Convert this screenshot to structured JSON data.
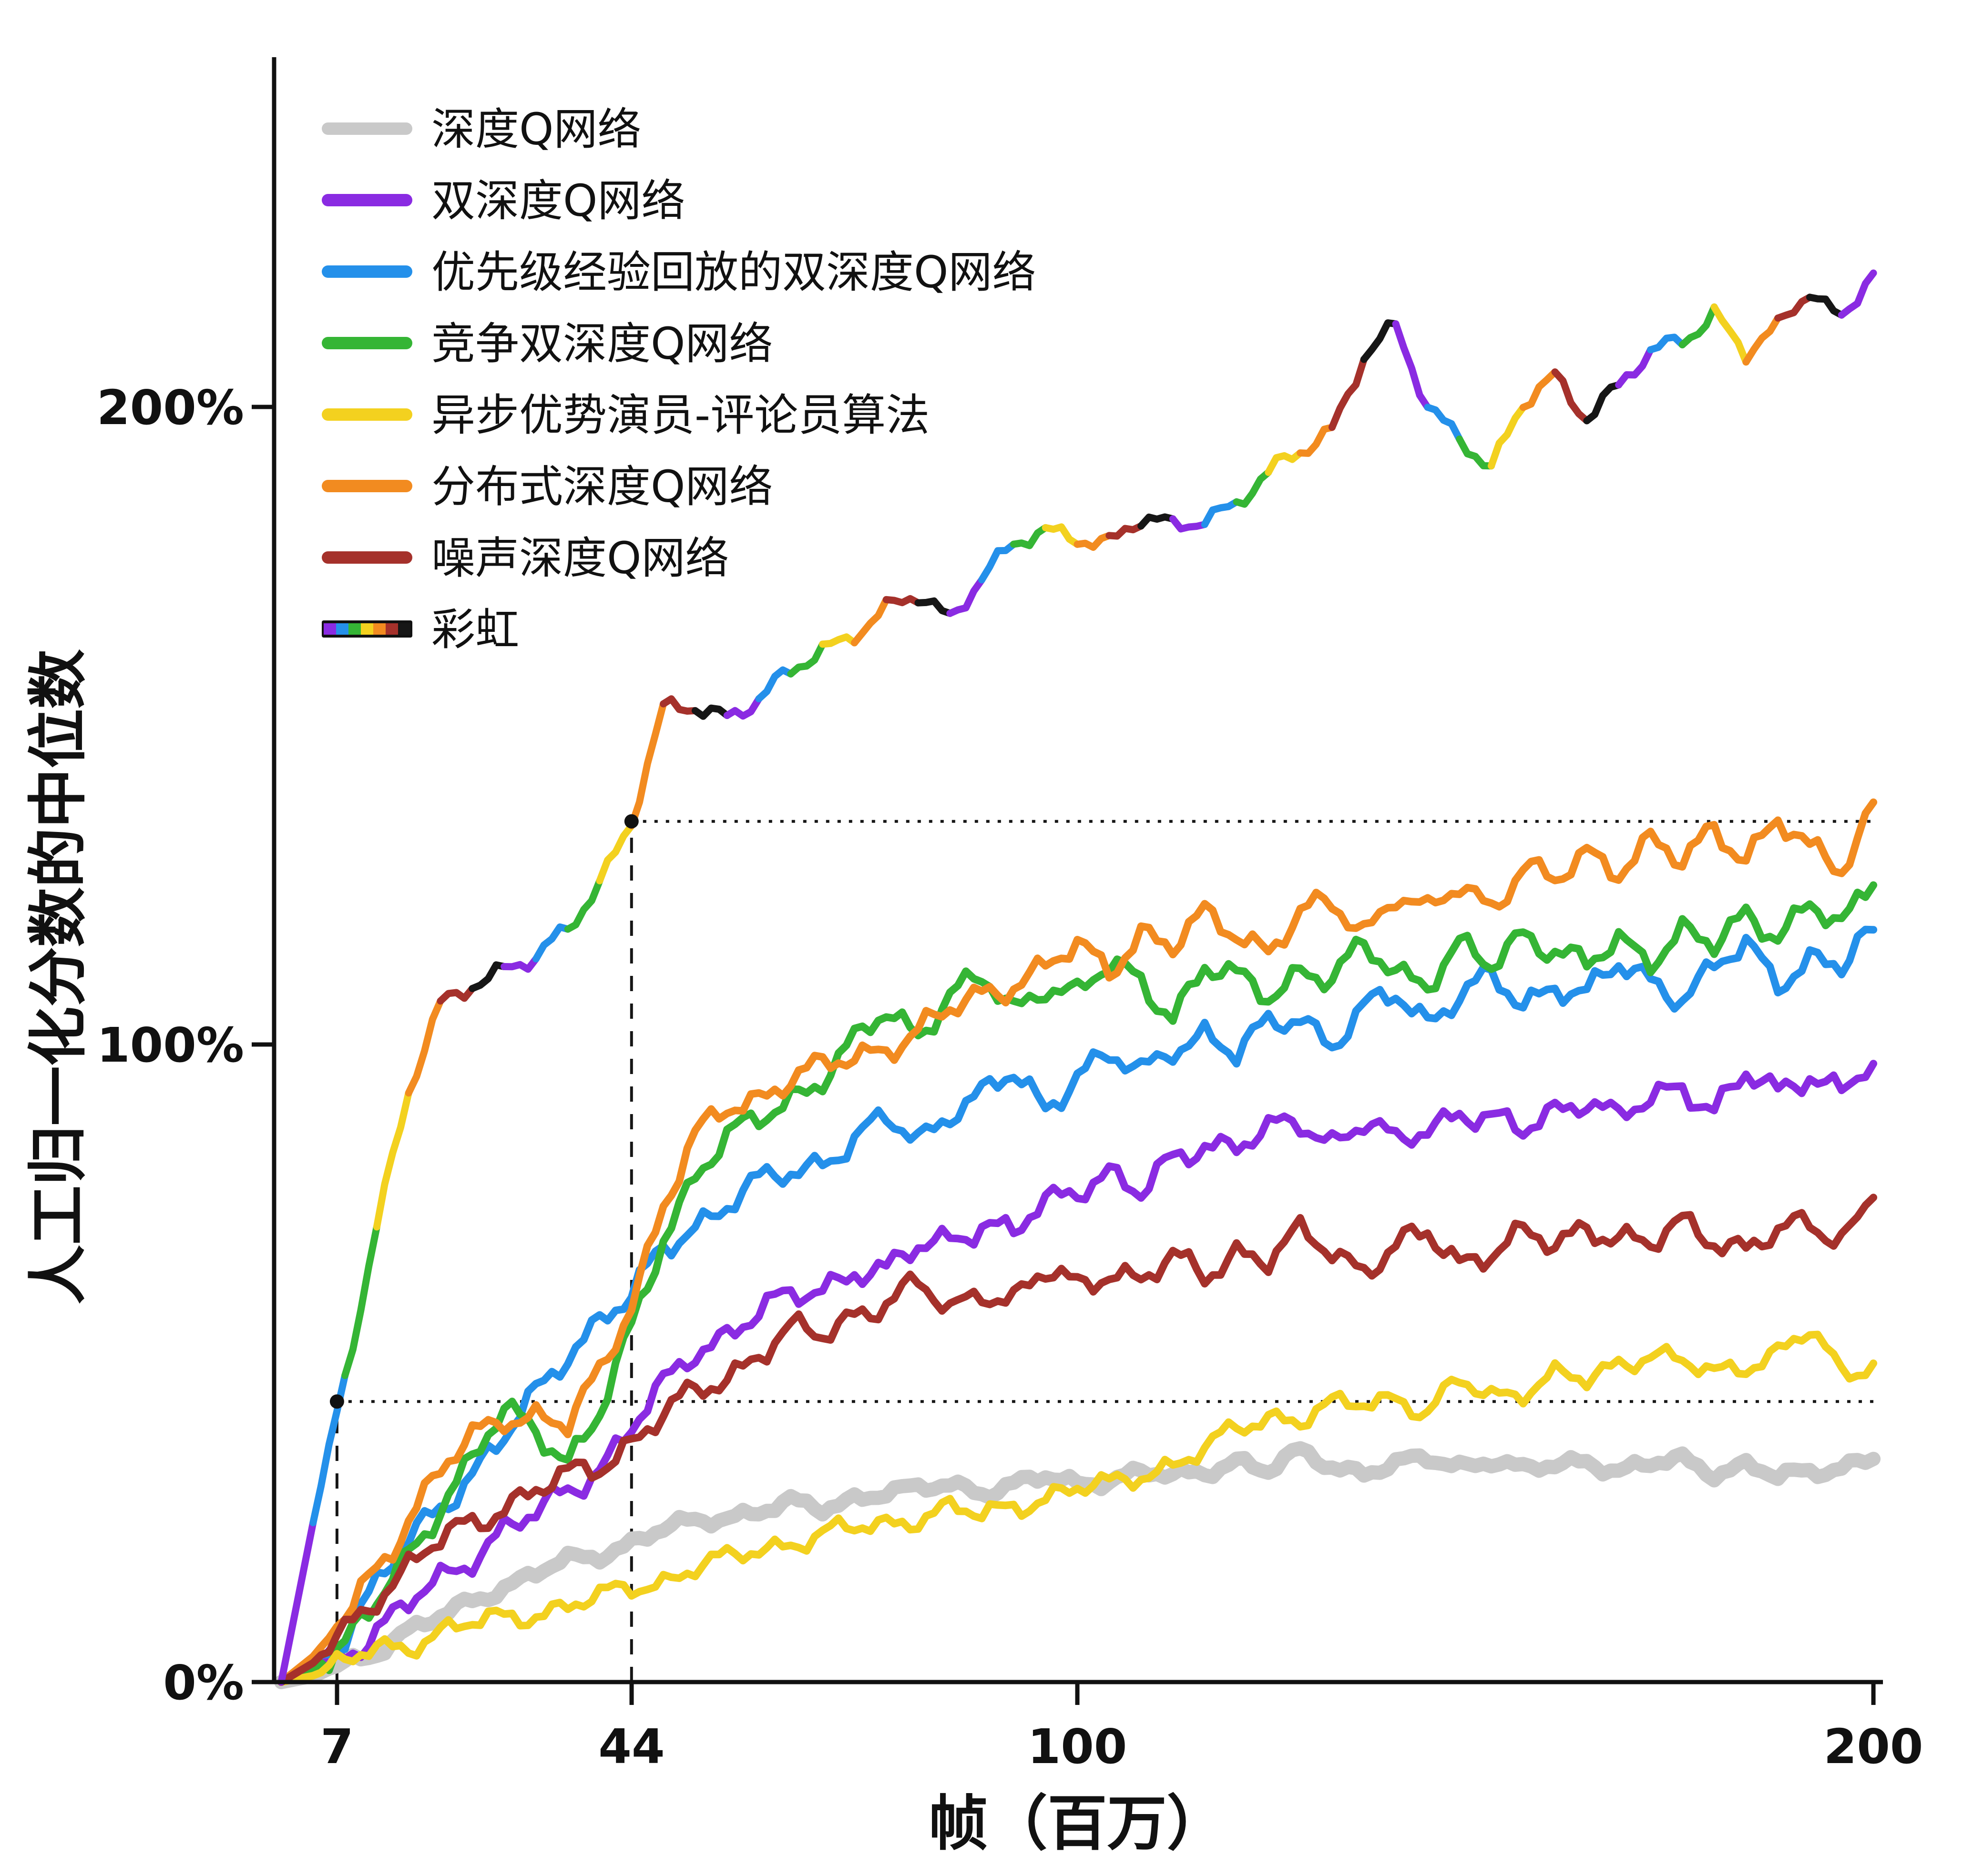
{
  "figure": {
    "background": "#ffffff"
  },
  "chart_data": {
    "type": "line",
    "title": "",
    "xlabel": "帧（百万）",
    "ylabel": "人工归一化分数的中位数",
    "xlim": [
      0,
      200
    ],
    "ylim": [
      0,
      230
    ],
    "grid": false,
    "legend_position": "top-left",
    "x_ticks": [
      7,
      44,
      100,
      200
    ],
    "x_tick_labels": [
      "7",
      "44",
      "100",
      "200"
    ],
    "y_ticks": [
      0,
      100,
      200
    ],
    "y_tick_labels": [
      "0%",
      "100%",
      "200%"
    ],
    "rainbow_palette": [
      "#8a2be2",
      "#2490ea",
      "#35b535",
      "#f3d11f",
      "#f28b20",
      "#a5312b",
      "#161616"
    ],
    "annotations": {
      "points": [
        {
          "x": 7,
          "y": 44
        },
        {
          "x": 44,
          "y": 135
        }
      ],
      "vlines": [
        {
          "x": 7,
          "to_y": 44
        },
        {
          "x": 44,
          "to_y": 135
        }
      ],
      "hlines": [
        {
          "y": 44,
          "from_x": 7
        },
        {
          "y": 135,
          "from_x": 44
        }
      ]
    },
    "x_values": [
      0,
      4,
      8,
      12,
      16,
      20,
      24,
      28,
      32,
      36,
      40,
      44,
      48,
      52,
      56,
      60,
      64,
      68,
      72,
      76,
      80,
      84,
      88,
      92,
      96,
      100,
      104,
      108,
      112,
      116,
      120,
      124,
      128,
      132,
      136,
      140,
      144,
      148,
      152,
      156,
      160,
      164,
      168,
      172,
      176,
      180,
      184,
      188,
      192,
      196,
      200
    ],
    "series": [
      {
        "id": "dqn",
        "name": "深度Q网络",
        "color": "#c9c9c9",
        "width": 30,
        "jitter": 1.2,
        "rainbow": false,
        "values": [
          0,
          1,
          3,
          5,
          8,
          10,
          13,
          15,
          17,
          19,
          20,
          22,
          24,
          25,
          26,
          27,
          28,
          27,
          29,
          30,
          30,
          31,
          30,
          31,
          32,
          31,
          32,
          33,
          32,
          33,
          35,
          33,
          36,
          34,
          33,
          34,
          35,
          34,
          35,
          33,
          34,
          35,
          33,
          34,
          35,
          33,
          34,
          32,
          33,
          34,
          35
        ]
      },
      {
        "id": "double-dqn",
        "name": "双深度Q网络",
        "color": "#8a2be2",
        "width": 16,
        "jitter": 2.5,
        "rainbow": false,
        "values": [
          0,
          2,
          5,
          8,
          12,
          16,
          20,
          24,
          26,
          30,
          34,
          40,
          46,
          52,
          55,
          58,
          60,
          62,
          65,
          64,
          68,
          70,
          72,
          70,
          75,
          78,
          80,
          76,
          82,
          85,
          84,
          86,
          88,
          85,
          88,
          84,
          87,
          90,
          88,
          86,
          90,
          92,
          88,
          91,
          94,
          90,
          95,
          92,
          96,
          93,
          97
        ]
      },
      {
        "id": "prioritized-ddqn",
        "name": "优先级经验回放的双深度Q网络",
        "color": "#2490ea",
        "width": 16,
        "jitter": 2.5,
        "rainbow": false,
        "values": [
          0,
          3,
          8,
          15,
          22,
          28,
          33,
          38,
          45,
          52,
          57,
          60,
          68,
          72,
          75,
          78,
          80,
          82,
          85,
          88,
          85,
          90,
          92,
          95,
          90,
          96,
          98,
          95,
          100,
          102,
          98,
          103,
          105,
          100,
          105,
          108,
          104,
          108,
          110,
          106,
          110,
          108,
          112,
          110,
          108,
          112,
          115,
          110,
          114,
          112,
          118
        ]
      },
      {
        "id": "dueling-ddqn",
        "name": "竞争双深度Q网络",
        "color": "#35b535",
        "width": 16,
        "jitter": 2.5,
        "rainbow": false,
        "values": [
          0,
          2,
          6,
          12,
          20,
          28,
          35,
          42,
          40,
          35,
          42,
          55,
          70,
          80,
          85,
          88,
          92,
          95,
          100,
          105,
          102,
          108,
          110,
          105,
          110,
          108,
          112,
          110,
          105,
          112,
          110,
          108,
          112,
          110,
          115,
          112,
          110,
          115,
          112,
          118,
          115,
          112,
          116,
          114,
          118,
          115,
          120,
          118,
          122,
          118,
          125
        ]
      },
      {
        "id": "a3c",
        "name": "异步优势演员-评论员算法",
        "color": "#f3d11f",
        "width": 16,
        "jitter": 2.0,
        "rainbow": false,
        "values": [
          0,
          1,
          3,
          5,
          6,
          8,
          9,
          10,
          11,
          12,
          13,
          15,
          16,
          18,
          19,
          21,
          22,
          23,
          24,
          25,
          26,
          27,
          26,
          28,
          29,
          30,
          31,
          33,
          34,
          36,
          40,
          42,
          41,
          43,
          44,
          45,
          42,
          47,
          45,
          46,
          48,
          47,
          50,
          52,
          50,
          48,
          50,
          52,
          55,
          48,
          50
        ]
      },
      {
        "id": "distributional-dqn",
        "name": "分布式深度Q网络",
        "color": "#f28b20",
        "width": 16,
        "jitter": 2.5,
        "rainbow": false,
        "values": [
          0,
          4,
          10,
          18,
          26,
          33,
          38,
          42,
          42,
          40,
          48,
          60,
          75,
          85,
          90,
          92,
          95,
          96,
          98,
          100,
          102,
          105,
          108,
          110,
          112,
          115,
          112,
          118,
          115,
          120,
          118,
          115,
          120,
          122,
          118,
          124,
          120,
          125,
          122,
          128,
          125,
          130,
          128,
          132,
          128,
          134,
          130,
          135,
          130,
          128,
          138
        ]
      },
      {
        "id": "noisy-dqn",
        "name": "噪声深度Q网络",
        "color": "#a5312b",
        "width": 16,
        "jitter": 2.5,
        "rainbow": false,
        "values": [
          0,
          3,
          8,
          14,
          18,
          22,
          25,
          28,
          30,
          32,
          34,
          38,
          42,
          45,
          48,
          52,
          55,
          54,
          58,
          60,
          62,
          58,
          62,
          60,
          64,
          62,
          65,
          63,
          66,
          64,
          68,
          66,
          70,
          68,
          65,
          68,
          70,
          66,
          68,
          70,
          68,
          72,
          70,
          68,
          72,
          70,
          68,
          70,
          72,
          70,
          76
        ]
      },
      {
        "id": "rainbow",
        "name": "彩虹",
        "color": "#8a2be2",
        "width": 15,
        "jitter": 1.8,
        "rainbow": true,
        "values": [
          0,
          25,
          48,
          72,
          92,
          106,
          110,
          112,
          113,
          118,
          126,
          135,
          152,
          153,
          152,
          154,
          158,
          162,
          165,
          168,
          170,
          167,
          174,
          178,
          180,
          180,
          179,
          182,
          181,
          183,
          185,
          189,
          193,
          197,
          208,
          212,
          200,
          196,
          190,
          200,
          205,
          199,
          203,
          208,
          211,
          215,
          208,
          212,
          219,
          214,
          221
        ]
      }
    ]
  }
}
